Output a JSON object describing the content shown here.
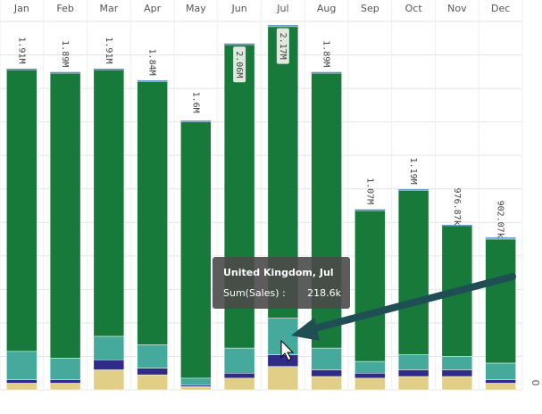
{
  "chart_data": {
    "type": "stacked-bar",
    "categories": [
      "Jan",
      "Feb",
      "Mar",
      "Apr",
      "May",
      "Jun",
      "Jul",
      "Aug",
      "Sep",
      "Oct",
      "Nov",
      "Dec"
    ],
    "series": [
      {
        "color": "#e1cf88",
        "values": [
          40000,
          40000,
          120000,
          90000,
          20000,
          70000,
          140000,
          80000,
          70000,
          80000,
          80000,
          40000
        ]
      },
      {
        "color": "#2f2b86",
        "values": [
          20000,
          20000,
          60000,
          40000,
          10000,
          30000,
          70000,
          40000,
          30000,
          40000,
          40000,
          20000
        ]
      },
      {
        "name": "United Kingdom",
        "color": "#45a99b",
        "values": [
          170000,
          130000,
          140000,
          140000,
          40000,
          150000,
          218600,
          130000,
          70000,
          90000,
          80000,
          100000
        ]
      },
      {
        "color": "#17793a",
        "values": [
          1680000,
          1700000,
          1590000,
          1570000,
          1530000,
          1810000,
          1740000,
          1640000,
          900000,
          980000,
          780000,
          740000
        ]
      }
    ],
    "totals": [
      1910000,
      1890000,
      1910000,
      1840000,
      1600000,
      2060000,
      2170000,
      1890000,
      1070000,
      1190000,
      976870,
      902070
    ],
    "value_labels": [
      "1.91M",
      "1.89M",
      "1.91M",
      "1.84M",
      "1.6M",
      "2.06M",
      "2.17M",
      "1.89M",
      "1.07M",
      "1.19M",
      "976.87k",
      "902.07k"
    ],
    "ylim": [
      0,
      2200000
    ],
    "yticks": [
      0
    ],
    "ygrid": [
      200000,
      400000,
      600000,
      800000,
      1000000,
      1200000,
      1400000,
      1600000,
      1800000,
      2000000,
      2200000
    ],
    "tooltip": {
      "title": "United Kingdom, Jul",
      "label": "Sum(Sales) :",
      "value": "218.6k"
    }
  }
}
